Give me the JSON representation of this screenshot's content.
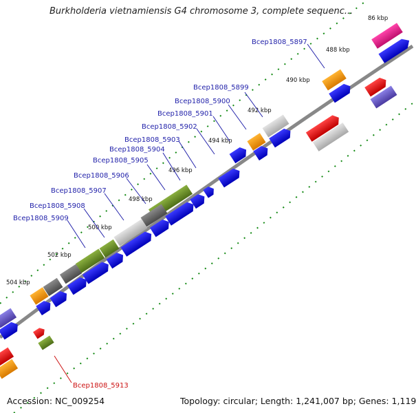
{
  "title": "Burkholderia vietnamiensis G4 chromosome 3, complete sequenc...",
  "footer": {
    "accession": "Accession: NC_009254",
    "summary": "Topology: circular; Length: 1,241,007 bp; Genes: 1,119"
  },
  "kbp_labels": [
    "86 kbp",
    "488 kbp",
    "490 kbp",
    "492 kbp",
    "494 kbp",
    "496 kbp",
    "498 kbp",
    "500 kbp",
    "502 kbp",
    "504 kbp"
  ],
  "gene_labels": [
    "Bcep1808_5897",
    "Bcep1808_5899",
    "Bcep1808_5900",
    "Bcep1808_5901",
    "Bcep1808_5902",
    "Bcep1808_5903",
    "Bcep1808_5904",
    "Bcep1808_5905",
    "Bcep1808_5906",
    "Bcep1808_5907",
    "Bcep1808_5908",
    "Bcep1808_5909",
    "Bcep1808_5913"
  ],
  "colors": {
    "backbone": "#888888",
    "cds": "#0000ee",
    "ticks": "#118811",
    "label_blue": "#2222aa",
    "label_red": "#cc1111",
    "cog_orange": "#f39c12",
    "cog_grey": "#666666",
    "cog_lightgrey": "#c8c8c8",
    "cog_green": "#6b8e23",
    "cog_red": "#ee1111",
    "cog_magenta": "#e8198b",
    "cog_purple": "#6a5acd"
  }
}
